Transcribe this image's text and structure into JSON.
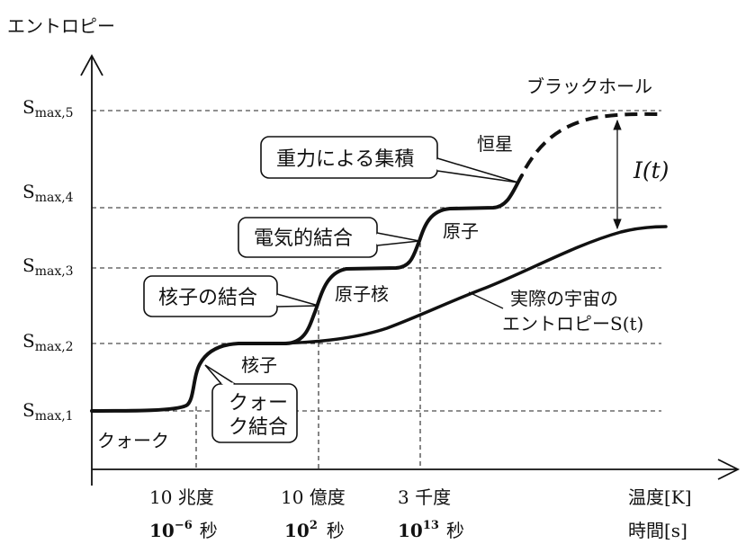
{
  "y_axis_label": "エントロピー",
  "levels": [
    {
      "base": "S",
      "sub": "max,1"
    },
    {
      "base": "S",
      "sub": "max,2"
    },
    {
      "base": "S",
      "sub": "max,3"
    },
    {
      "base": "S",
      "sub": "max,4"
    },
    {
      "base": "S",
      "sub": "max,5"
    }
  ],
  "labels": {
    "black_hole": "ブラックホール",
    "star": "恒星",
    "atom": "原子",
    "nucleus": "原子核",
    "nucleon": "核子",
    "quark": "クォーク"
  },
  "callouts": {
    "gravity": "重力による集積",
    "electric": "電気的結合",
    "nuclear": "核子の結合",
    "quark_line1": "クォー",
    "quark_line2": "ク結合"
  },
  "actual_entropy": {
    "line1": "実際の宇宙の",
    "line2": "エントロピーS(t)"
  },
  "information_gap": "I(t)",
  "temperature": {
    "ticks": [
      "10 兆度",
      "10 億度",
      "3 千度"
    ],
    "axis_label": "温度[K]"
  },
  "time": {
    "ticks": [
      {
        "base": "10",
        "exp": "−6",
        "unit": "秒"
      },
      {
        "base": "10",
        "exp": "2",
        "unit": "秒"
      },
      {
        "base": "10",
        "exp": "13",
        "unit": "秒"
      }
    ],
    "axis_label": "時間[s]"
  }
}
